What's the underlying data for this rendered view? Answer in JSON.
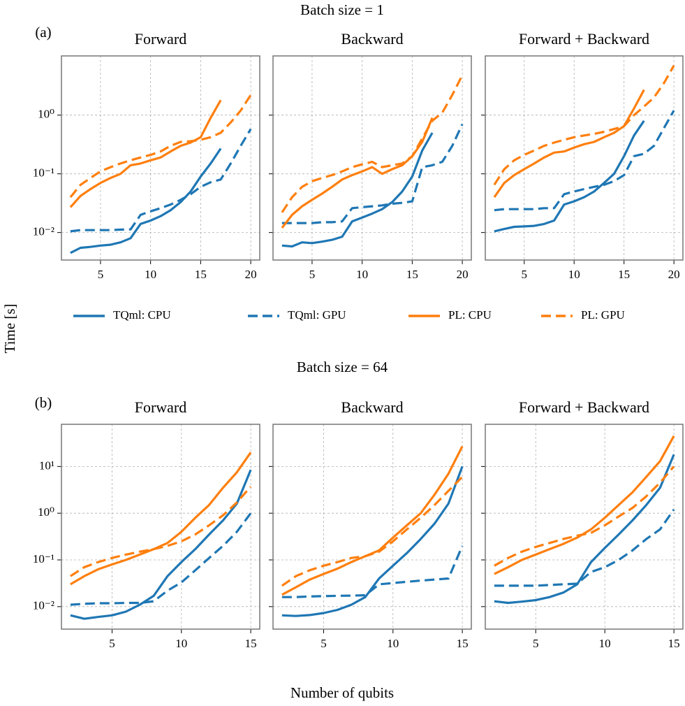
{
  "row_titles": [
    "Batch size = 1",
    "Batch size = 64"
  ],
  "panel_labels": [
    "(a)",
    "(b)"
  ],
  "ylabel": "Time [s]",
  "xlabel": "Number of qubits",
  "legend": [
    {
      "name": "TQml: CPU",
      "color": "#1f77b4",
      "dash": "solid"
    },
    {
      "name": "TQml: GPU",
      "color": "#1f77b4",
      "dash": "dashed"
    },
    {
      "name": "PL: CPU",
      "color": "#ff7f0e",
      "dash": "solid"
    },
    {
      "name": "PL: GPU",
      "color": "#ff7f0e",
      "dash": "dashed"
    }
  ],
  "chart_data": [
    {
      "type": "line",
      "title": "Forward",
      "yscale": "log",
      "grid": true,
      "x": [
        2,
        3,
        4,
        5,
        6,
        7,
        8,
        9,
        10,
        11,
        12,
        13,
        14,
        15,
        16,
        17,
        18,
        19,
        20
      ],
      "series": [
        {
          "values": [
            0.0045,
            0.0055,
            0.0057,
            0.006,
            0.0062,
            0.0068,
            0.008,
            0.014,
            0.016,
            0.019,
            0.024,
            0.033,
            0.05,
            0.09,
            0.15,
            0.27,
            null,
            null,
            null
          ]
        },
        {
          "values": [
            0.0105,
            0.011,
            0.011,
            0.011,
            0.011,
            0.0112,
            0.0113,
            0.02,
            0.023,
            0.026,
            0.03,
            0.036,
            0.045,
            0.06,
            0.072,
            0.08,
            0.15,
            0.3,
            0.58
          ]
        },
        {
          "values": [
            0.027,
            0.042,
            0.055,
            0.07,
            0.085,
            0.1,
            0.14,
            0.15,
            0.17,
            0.19,
            0.24,
            0.3,
            0.34,
            0.42,
            0.9,
            1.8,
            null,
            null,
            null
          ]
        },
        {
          "values": [
            0.04,
            0.065,
            0.085,
            0.11,
            0.13,
            0.15,
            0.17,
            0.19,
            0.21,
            0.24,
            0.3,
            0.35,
            0.36,
            0.38,
            0.42,
            0.5,
            0.75,
            1.2,
            2.2
          ]
        }
      ],
      "xlim": [
        1.1,
        20.9
      ],
      "xticks": [
        5,
        10,
        15,
        20
      ],
      "ylim": [
        0.0034,
        10.2
      ],
      "yticks": [
        {
          "value": 0.01,
          "label": "10⁻²"
        },
        {
          "value": 0.1,
          "label": "10⁻¹"
        },
        {
          "value": 1,
          "label": "10⁰"
        }
      ]
    },
    {
      "type": "line",
      "title": "Backward",
      "yscale": "log",
      "grid": true,
      "x": [
        2,
        3,
        4,
        5,
        6,
        7,
        8,
        9,
        10,
        11,
        12,
        13,
        14,
        15,
        16,
        17,
        18,
        19,
        20
      ],
      "series": [
        {
          "values": [
            0.006,
            0.0058,
            0.0068,
            0.0066,
            0.007,
            0.0075,
            0.0085,
            0.0155,
            0.018,
            0.021,
            0.025,
            0.033,
            0.05,
            0.09,
            0.25,
            0.5,
            null,
            null,
            null
          ]
        },
        {
          "values": [
            0.0145,
            0.0145,
            0.0145,
            0.0145,
            0.015,
            0.015,
            0.0155,
            0.026,
            0.027,
            0.028,
            0.029,
            0.031,
            0.032,
            0.034,
            0.13,
            0.14,
            0.16,
            0.3,
            0.7
          ]
        },
        {
          "values": [
            0.012,
            0.02,
            0.028,
            0.036,
            0.046,
            0.06,
            0.08,
            0.095,
            0.11,
            0.13,
            0.1,
            0.12,
            0.14,
            0.2,
            0.35,
            0.9,
            null,
            null,
            null
          ]
        },
        {
          "values": [
            0.022,
            0.04,
            0.06,
            0.075,
            0.085,
            0.095,
            0.11,
            0.13,
            0.145,
            0.16,
            0.13,
            0.14,
            0.15,
            0.2,
            0.4,
            0.8,
            1.1,
            2.2,
            4.8
          ]
        }
      ],
      "xlim": [
        1.1,
        20.9
      ],
      "xticks": [
        5,
        10,
        15,
        20
      ],
      "ylim": [
        0.0034,
        10.2
      ],
      "yticks": [
        {
          "value": 0.01,
          "label": "10⁻²"
        },
        {
          "value": 0.1,
          "label": "10⁻¹"
        },
        {
          "value": 1,
          "label": "10⁰"
        }
      ]
    },
    {
      "type": "line",
      "title": "Forward + Backward",
      "yscale": "log",
      "grid": true,
      "x": [
        2,
        3,
        4,
        5,
        6,
        7,
        8,
        9,
        10,
        11,
        12,
        13,
        14,
        15,
        16,
        17,
        18,
        19,
        20
      ],
      "series": [
        {
          "values": [
            0.0105,
            0.0115,
            0.0125,
            0.0127,
            0.013,
            0.014,
            0.016,
            0.03,
            0.034,
            0.04,
            0.05,
            0.07,
            0.1,
            0.2,
            0.45,
            0.8,
            null,
            null,
            null
          ]
        },
        {
          "values": [
            0.024,
            0.025,
            0.025,
            0.025,
            0.025,
            0.026,
            0.026,
            0.045,
            0.05,
            0.055,
            0.06,
            0.065,
            0.075,
            0.095,
            0.2,
            0.22,
            0.3,
            0.6,
            1.2
          ]
        },
        {
          "values": [
            0.04,
            0.07,
            0.095,
            0.12,
            0.15,
            0.19,
            0.23,
            0.24,
            0.28,
            0.32,
            0.35,
            0.42,
            0.5,
            0.65,
            1.3,
            2.7,
            null,
            null,
            null
          ]
        },
        {
          "values": [
            0.065,
            0.12,
            0.17,
            0.21,
            0.25,
            0.3,
            0.34,
            0.38,
            0.42,
            0.45,
            0.48,
            0.52,
            0.58,
            0.65,
            1.0,
            1.4,
            2.0,
            3.5,
            7.0
          ]
        }
      ],
      "xlim": [
        1.1,
        20.9
      ],
      "xticks": [
        5,
        10,
        15,
        20
      ],
      "ylim": [
        0.0034,
        10.2
      ],
      "yticks": [
        {
          "value": 0.01,
          "label": "10⁻²"
        },
        {
          "value": 0.1,
          "label": "10⁻¹"
        },
        {
          "value": 1,
          "label": "10⁰"
        }
      ]
    },
    {
      "type": "line",
      "title": "Forward",
      "yscale": "log",
      "grid": true,
      "x": [
        2,
        3,
        4,
        5,
        6,
        7,
        8,
        9,
        10,
        11,
        12,
        13,
        14,
        15
      ],
      "series": [
        {
          "values": [
            0.0065,
            0.0055,
            0.006,
            0.0065,
            0.0078,
            0.011,
            0.017,
            0.045,
            0.09,
            0.17,
            0.35,
            0.7,
            1.6,
            8.5
          ]
        },
        {
          "values": [
            0.011,
            0.0115,
            0.0118,
            0.0118,
            0.012,
            0.012,
            0.013,
            0.022,
            0.033,
            0.06,
            0.11,
            0.2,
            0.4,
            1.0
          ]
        },
        {
          "values": [
            0.03,
            0.045,
            0.063,
            0.08,
            0.1,
            0.13,
            0.17,
            0.23,
            0.4,
            0.8,
            1.5,
            3.5,
            7.5,
            20
          ]
        },
        {
          "values": [
            0.045,
            0.07,
            0.09,
            0.11,
            0.13,
            0.15,
            0.17,
            0.2,
            0.25,
            0.35,
            0.55,
            0.9,
            1.7,
            3.7
          ]
        }
      ],
      "xlim": [
        1.35,
        15.65
      ],
      "xticks": [
        5,
        10,
        15
      ],
      "ylim": [
        0.0033,
        80
      ],
      "yticks": [
        {
          "value": 0.01,
          "label": "10⁻²"
        },
        {
          "value": 0.1,
          "label": "10⁻¹"
        },
        {
          "value": 1,
          "label": "10⁰"
        },
        {
          "value": 10,
          "label": "10¹"
        }
      ]
    },
    {
      "type": "line",
      "title": "Backward",
      "yscale": "log",
      "grid": true,
      "x": [
        2,
        3,
        4,
        5,
        6,
        7,
        8,
        9,
        10,
        11,
        12,
        13,
        14,
        15
      ],
      "series": [
        {
          "values": [
            0.0065,
            0.0063,
            0.0066,
            0.0073,
            0.0085,
            0.011,
            0.016,
            0.04,
            0.075,
            0.14,
            0.28,
            0.6,
            1.6,
            10
          ]
        },
        {
          "values": [
            0.016,
            0.016,
            0.0165,
            0.0168,
            0.017,
            0.0172,
            0.0175,
            0.03,
            0.032,
            0.034,
            0.036,
            0.038,
            0.04,
            0.2
          ]
        },
        {
          "values": [
            0.018,
            0.026,
            0.038,
            0.05,
            0.065,
            0.09,
            0.12,
            0.16,
            0.3,
            0.55,
            1.0,
            2.5,
            7,
            27
          ]
        },
        {
          "values": [
            0.028,
            0.045,
            0.06,
            0.075,
            0.09,
            0.11,
            0.12,
            0.15,
            0.25,
            0.45,
            0.8,
            1.5,
            3,
            6
          ]
        }
      ],
      "xlim": [
        1.35,
        15.65
      ],
      "xticks": [
        5,
        10,
        15
      ],
      "ylim": [
        0.0033,
        80
      ],
      "yticks": [
        {
          "value": 0.01,
          "label": "10⁻²"
        },
        {
          "value": 0.1,
          "label": "10⁻¹"
        },
        {
          "value": 1,
          "label": "10⁰"
        },
        {
          "value": 10,
          "label": "10¹"
        }
      ]
    },
    {
      "type": "line",
      "title": "Forward + Backward",
      "yscale": "log",
      "grid": true,
      "x": [
        2,
        3,
        4,
        5,
        6,
        7,
        8,
        9,
        10,
        11,
        12,
        13,
        14,
        15
      ],
      "series": [
        {
          "values": [
            0.013,
            0.012,
            0.0128,
            0.0138,
            0.016,
            0.02,
            0.03,
            0.09,
            0.18,
            0.35,
            0.7,
            1.5,
            3.5,
            18
          ]
        },
        {
          "values": [
            0.028,
            0.028,
            0.028,
            0.028,
            0.029,
            0.03,
            0.031,
            0.055,
            0.07,
            0.1,
            0.16,
            0.28,
            0.45,
            1.2
          ]
        },
        {
          "values": [
            0.05,
            0.07,
            0.1,
            0.13,
            0.17,
            0.22,
            0.3,
            0.45,
            0.8,
            1.5,
            2.8,
            6,
            13,
            45
          ]
        },
        {
          "values": [
            0.075,
            0.11,
            0.15,
            0.19,
            0.23,
            0.28,
            0.33,
            0.38,
            0.55,
            0.85,
            1.3,
            2.3,
            4.5,
            10
          ]
        }
      ],
      "xlim": [
        1.35,
        15.65
      ],
      "xticks": [
        5,
        10,
        15
      ],
      "ylim": [
        0.0033,
        80
      ],
      "yticks": [
        {
          "value": 0.01,
          "label": "10⁻²"
        },
        {
          "value": 0.1,
          "label": "10⁻¹"
        },
        {
          "value": 1,
          "label": "10⁰"
        },
        {
          "value": 10,
          "label": "10¹"
        }
      ]
    }
  ]
}
